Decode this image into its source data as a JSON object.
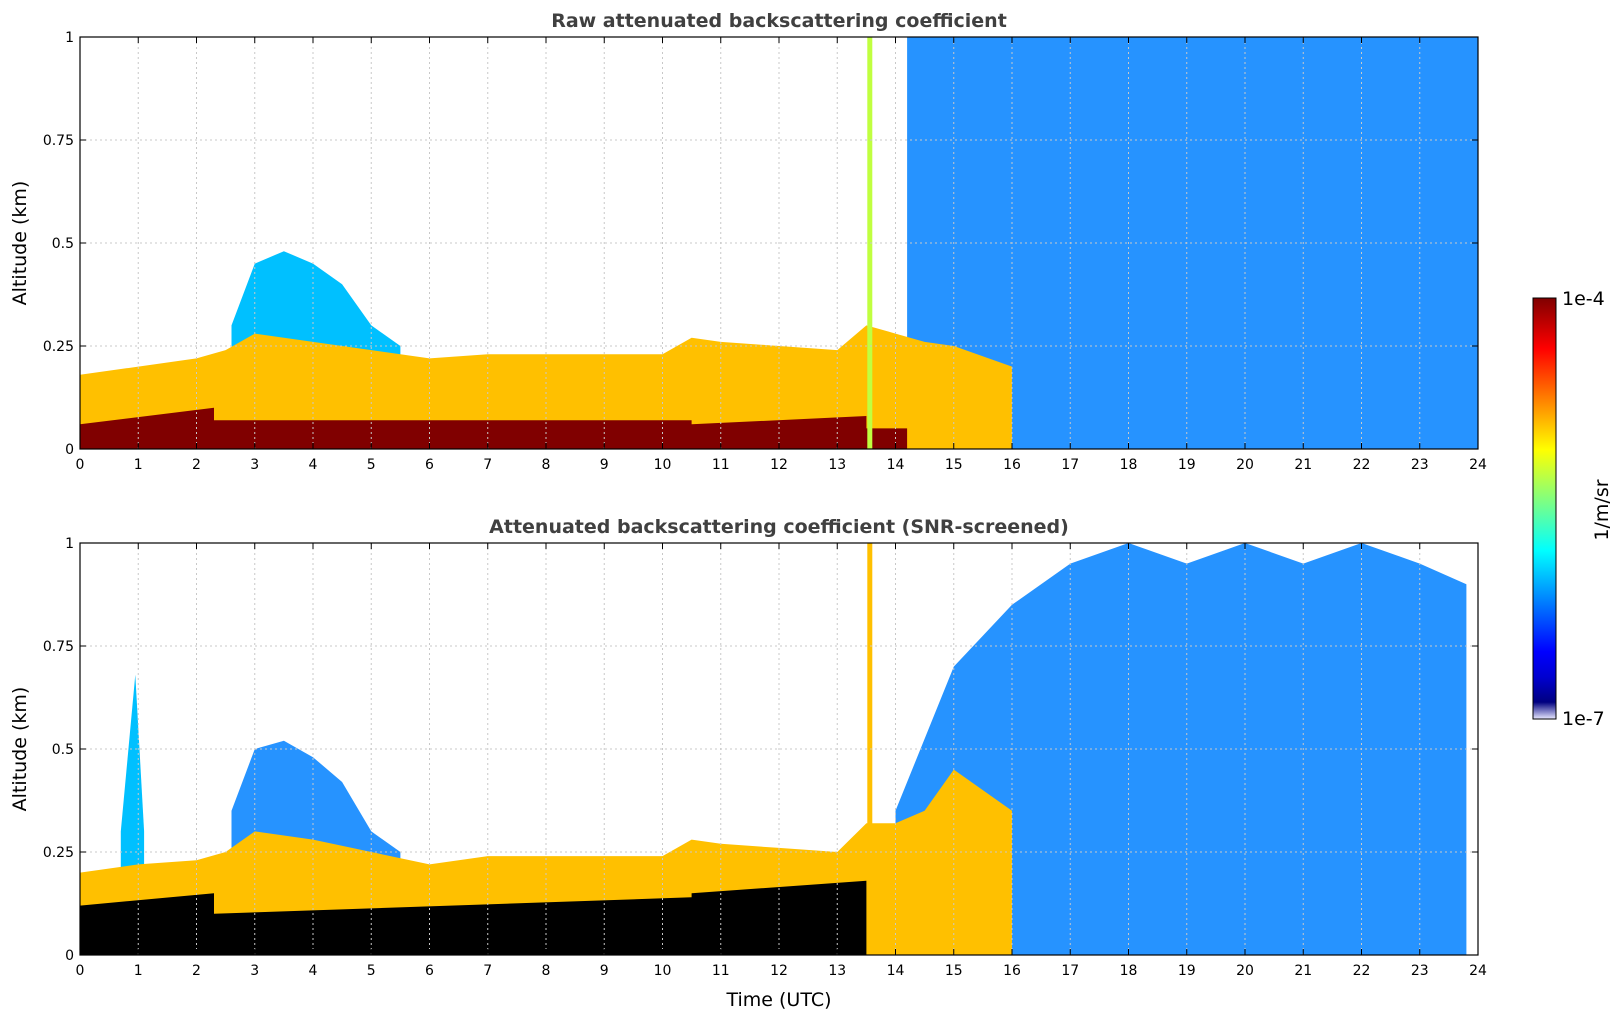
{
  "colors": {
    "jet": [
      "#000080",
      "#0000d0",
      "#0000ff",
      "#0040ff",
      "#0080ff",
      "#00c0ff",
      "#00ffff",
      "#40ffc0",
      "#80ff80",
      "#c0ff40",
      "#ffff00",
      "#ffc000",
      "#ff8000",
      "#ff4000",
      "#ff0000",
      "#c00000",
      "#800000"
    ],
    "below_min": "#e8e8ff",
    "saturated_screened": "#000000",
    "grid": "#c8c8c8",
    "title": "#404040"
  },
  "colorbar": {
    "max_label": "1e-4",
    "min_label": "1e-7",
    "unit_label": "1/m/sr",
    "scale": "log",
    "range": [
      1e-07,
      0.0001
    ]
  },
  "chart_data": [
    {
      "type": "heatmap",
      "title": "Raw attenuated backscattering coefficient",
      "xlabel": "",
      "ylabel": "Altitude (km)",
      "xlim": [
        0,
        24
      ],
      "ylim": [
        0,
        1
      ],
      "x_ticks": [
        "0",
        "1",
        "2",
        "3",
        "4",
        "5",
        "6",
        "7",
        "8",
        "9",
        "10",
        "11",
        "12",
        "13",
        "14",
        "15",
        "16",
        "17",
        "18",
        "19",
        "20",
        "21",
        "22",
        "23",
        "24"
      ],
      "y_ticks": [
        "0",
        "0.25",
        "0.5",
        "0.75",
        "1"
      ],
      "grid": true,
      "layers": [
        {
          "name": "surface saturation",
          "x": [
            0,
            2.3,
            2.3,
            10.5,
            10.5,
            13.5,
            13.5,
            14.2
          ],
          "top_km": [
            0.06,
            0.1,
            0.07,
            0.07,
            0.06,
            0.08,
            0.05,
            0.05
          ],
          "log_value": -4.0
        },
        {
          "name": "boundary layer top",
          "x": [
            0,
            1,
            2,
            2.5,
            3,
            4,
            5,
            6,
            7,
            8,
            9,
            10,
            10.5,
            11,
            12,
            13,
            13.5,
            14,
            14.5,
            15,
            16
          ],
          "top_km": [
            0.18,
            0.2,
            0.22,
            0.24,
            0.28,
            0.26,
            0.24,
            0.22,
            0.23,
            0.23,
            0.23,
            0.23,
            0.27,
            0.26,
            0.25,
            0.24,
            0.3,
            0.28,
            0.26,
            0.25,
            0.2
          ],
          "log_value": -5.0
        },
        {
          "name": "aerosol plume 3-5h",
          "x": [
            2.6,
            3,
            3.5,
            4,
            4.5,
            5,
            5.5
          ],
          "top_km": [
            0.3,
            0.45,
            0.48,
            0.45,
            0.4,
            0.3,
            0.25
          ],
          "log_value": -6.0
        },
        {
          "name": "noise region 14-24h",
          "x": [
            14.2,
            24
          ],
          "top_km": [
            1.0,
            1.0
          ],
          "log_value": -6.3
        }
      ],
      "vertical_spike": {
        "x": 13.55,
        "log_value": -5.3
      }
    },
    {
      "type": "heatmap",
      "title": "Attenuated backscattering coefficient (SNR-screened)",
      "xlabel": "Time (UTC)",
      "ylabel": "Altitude (km)",
      "xlim": [
        0,
        24
      ],
      "ylim": [
        0,
        1
      ],
      "x_ticks": [
        "0",
        "1",
        "2",
        "3",
        "4",
        "5",
        "6",
        "7",
        "8",
        "9",
        "10",
        "11",
        "12",
        "13",
        "14",
        "15",
        "16",
        "17",
        "18",
        "19",
        "20",
        "21",
        "22",
        "23",
        "24"
      ],
      "y_ticks": [
        "0",
        "0.25",
        "0.5",
        "0.75",
        "1"
      ],
      "grid": true,
      "layers": [
        {
          "name": "screened surface",
          "x": [
            0,
            2.3,
            2.3,
            10.5,
            10.5,
            13.5
          ],
          "top_km": [
            0.12,
            0.15,
            0.1,
            0.14,
            0.15,
            0.18
          ],
          "log_value": null
        },
        {
          "name": "boundary layer top",
          "x": [
            0,
            1,
            2,
            2.5,
            3,
            4,
            5,
            6,
            7,
            8,
            9,
            10,
            10.5,
            11,
            12,
            13,
            13.5,
            14,
            14.5,
            15,
            16
          ],
          "top_km": [
            0.2,
            0.22,
            0.23,
            0.25,
            0.3,
            0.28,
            0.25,
            0.22,
            0.24,
            0.24,
            0.24,
            0.24,
            0.28,
            0.27,
            0.26,
            0.25,
            0.32,
            0.32,
            0.35,
            0.45,
            0.35
          ],
          "log_value": -5.0
        },
        {
          "name": "cloud peak 1h",
          "x": [
            0.7,
            0.95,
            1.1
          ],
          "top_km": [
            0.3,
            0.68,
            0.3
          ],
          "log_value": -6.0
        },
        {
          "name": "aerosol plume 3-5h",
          "x": [
            2.6,
            3,
            3.5,
            4,
            4.5,
            5,
            5.5
          ],
          "top_km": [
            0.35,
            0.5,
            0.52,
            0.48,
            0.42,
            0.3,
            0.25
          ],
          "log_value": -6.3
        },
        {
          "name": "screened noise region 14-24h",
          "x": [
            14,
            15,
            16,
            17,
            18,
            19,
            20,
            21,
            22,
            23,
            23.8
          ],
          "top_km": [
            0.35,
            0.7,
            0.85,
            0.95,
            1.0,
            0.95,
            1.0,
            0.95,
            1.0,
            0.95,
            0.9
          ],
          "log_value": -6.2
        }
      ],
      "vertical_spike": {
        "x": 13.55,
        "log_value": -5.0
      }
    }
  ]
}
